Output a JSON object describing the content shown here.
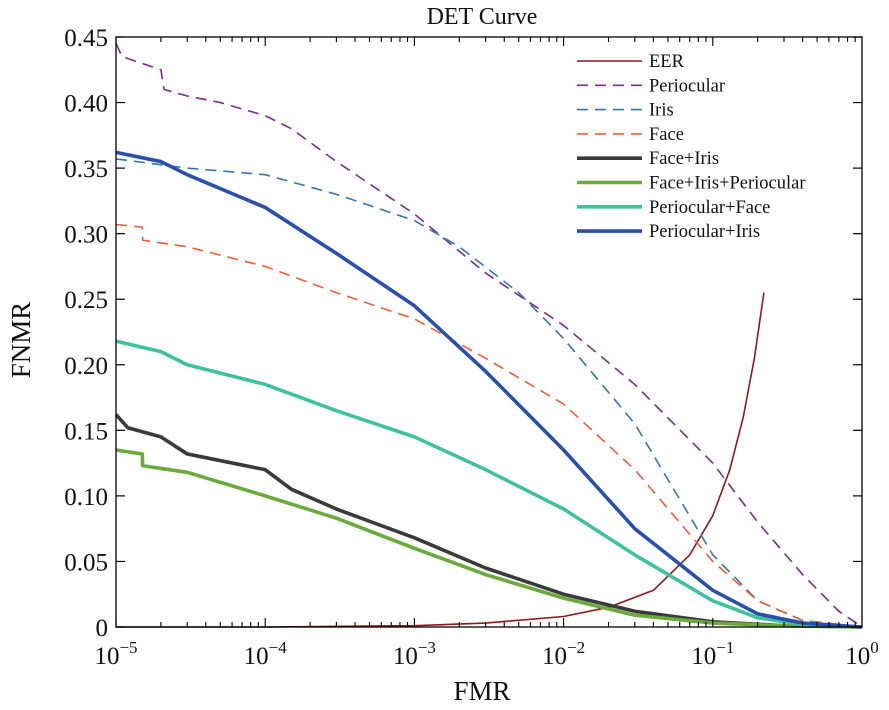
{
  "chart_data": {
    "type": "line",
    "title": "DET Curve",
    "xlabel": "FMR",
    "ylabel": "FNMR",
    "xscale": "log",
    "xlim": [
      1e-05,
      1
    ],
    "ylim": [
      0,
      0.45
    ],
    "grid": false,
    "legend_position": "top-right",
    "x_ticks": [
      {
        "value": 1e-05,
        "base": "10",
        "exp": "−5"
      },
      {
        "value": 0.0001,
        "base": "10",
        "exp": "−4"
      },
      {
        "value": 0.001,
        "base": "10",
        "exp": "−3"
      },
      {
        "value": 0.01,
        "base": "10",
        "exp": "−2"
      },
      {
        "value": 0.1,
        "base": "10",
        "exp": "−1"
      },
      {
        "value": 1,
        "base": "10",
        "exp": "0"
      }
    ],
    "y_ticks": [
      {
        "value": 0,
        "label": "0"
      },
      {
        "value": 0.05,
        "label": "0.05"
      },
      {
        "value": 0.1,
        "label": "0.10"
      },
      {
        "value": 0.15,
        "label": "0.15"
      },
      {
        "value": 0.2,
        "label": "0.20"
      },
      {
        "value": 0.25,
        "label": "0.25"
      },
      {
        "value": 0.3,
        "label": "0.30"
      },
      {
        "value": 0.35,
        "label": "0.35"
      },
      {
        "value": 0.4,
        "label": "0.40"
      },
      {
        "value": 0.45,
        "label": "0.45"
      }
    ],
    "series": [
      {
        "name": "EER",
        "color": "#8B1A1A",
        "style": "solid",
        "width": 1.6,
        "x": [
          1e-05,
          0.0001,
          0.001,
          0.003,
          0.01,
          0.02,
          0.04,
          0.07,
          0.1,
          0.13,
          0.16,
          0.19,
          0.22
        ],
        "y": [
          0,
          0,
          0.001,
          0.003,
          0.008,
          0.015,
          0.028,
          0.055,
          0.085,
          0.12,
          0.16,
          0.205,
          0.255
        ]
      },
      {
        "name": "Periocular",
        "color": "#7B2D8E",
        "style": "dashed",
        "width": 1.6,
        "x": [
          1e-05,
          1.1e-05,
          2e-05,
          2.1e-05,
          3e-05,
          5e-05,
          0.0001,
          0.00015,
          0.0003,
          0.001,
          0.003,
          0.01,
          0.03,
          0.1,
          0.2,
          0.4,
          0.7,
          1
        ],
        "y": [
          0.445,
          0.435,
          0.425,
          0.41,
          0.405,
          0.4,
          0.39,
          0.38,
          0.355,
          0.315,
          0.27,
          0.23,
          0.185,
          0.125,
          0.08,
          0.04,
          0.012,
          0
        ]
      },
      {
        "name": "Iris",
        "color": "#3575A8",
        "style": "dashed",
        "width": 1.6,
        "x": [
          1e-05,
          3e-05,
          0.0001,
          0.0003,
          0.001,
          0.002,
          0.005,
          0.01,
          0.03,
          0.1,
          0.2,
          0.4,
          1
        ],
        "y": [
          0.357,
          0.35,
          0.345,
          0.33,
          0.31,
          0.29,
          0.255,
          0.22,
          0.155,
          0.055,
          0.02,
          0.005,
          0
        ]
      },
      {
        "name": "Face",
        "color": "#E8603A",
        "style": "dashed",
        "width": 1.6,
        "x": [
          1e-05,
          1.5e-05,
          1.51e-05,
          3e-05,
          0.0001,
          0.0003,
          0.001,
          0.003,
          0.01,
          0.03,
          0.1,
          0.2,
          0.4,
          1
        ],
        "y": [
          0.307,
          0.305,
          0.295,
          0.29,
          0.275,
          0.255,
          0.235,
          0.205,
          0.17,
          0.12,
          0.05,
          0.02,
          0.005,
          0
        ]
      },
      {
        "name": "Face+Iris",
        "color": "#3A3A3A",
        "style": "solid",
        "width": 3.6,
        "x": [
          1e-05,
          1.2e-05,
          2e-05,
          3e-05,
          0.0001,
          0.00015,
          0.0003,
          0.001,
          0.003,
          0.01,
          0.03,
          0.1,
          0.3,
          1
        ],
        "y": [
          0.162,
          0.152,
          0.145,
          0.132,
          0.12,
          0.105,
          0.09,
          0.068,
          0.045,
          0.025,
          0.012,
          0.004,
          0.001,
          0
        ]
      },
      {
        "name": "Face+Iris+Periocular",
        "color": "#6AAA3A",
        "style": "solid",
        "width": 3.6,
        "x": [
          1e-05,
          1.5e-05,
          1.51e-05,
          3e-05,
          0.0001,
          0.0003,
          0.001,
          0.003,
          0.01,
          0.03,
          0.1,
          0.3,
          1
        ],
        "y": [
          0.135,
          0.132,
          0.123,
          0.118,
          0.1,
          0.083,
          0.06,
          0.04,
          0.022,
          0.009,
          0.003,
          0.001,
          0
        ]
      },
      {
        "name": "Periocular+Face",
        "color": "#3FC1A0",
        "style": "solid",
        "width": 3.6,
        "x": [
          1e-05,
          2e-05,
          3e-05,
          0.0001,
          0.0003,
          0.001,
          0.003,
          0.01,
          0.03,
          0.1,
          0.2,
          0.4,
          1
        ],
        "y": [
          0.218,
          0.21,
          0.2,
          0.185,
          0.165,
          0.145,
          0.12,
          0.09,
          0.055,
          0.02,
          0.007,
          0.002,
          0
        ]
      },
      {
        "name": "Periocular+Iris",
        "color": "#2A4FA8",
        "style": "solid",
        "width": 3.6,
        "x": [
          1e-05,
          2e-05,
          3e-05,
          0.0001,
          0.0003,
          0.001,
          0.003,
          0.01,
          0.03,
          0.1,
          0.2,
          0.4,
          1
        ],
        "y": [
          0.362,
          0.355,
          0.345,
          0.32,
          0.285,
          0.245,
          0.195,
          0.135,
          0.075,
          0.028,
          0.01,
          0.003,
          0
        ]
      }
    ]
  }
}
